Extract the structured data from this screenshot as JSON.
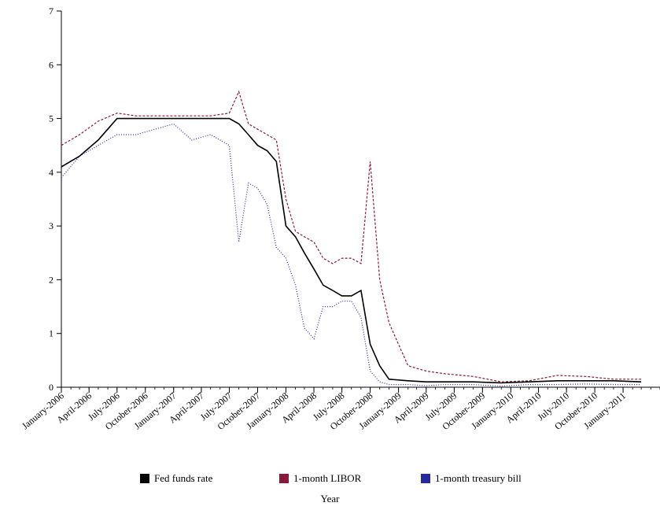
{
  "chart_data": {
    "type": "line",
    "title": "",
    "xlabel": "Year",
    "ylabel": "",
    "ylim": [
      0,
      7
    ],
    "yticks": [
      0,
      1,
      2,
      3,
      4,
      5,
      6,
      7
    ],
    "xticks": [
      "January-2006",
      "April-2006",
      "July-2006",
      "October-2006",
      "January-2007",
      "April-2007",
      "July-2007",
      "October-2007",
      "January-2008",
      "April-2008",
      "July-2008",
      "October-2008",
      "January-2009",
      "April-2009",
      "July-2009",
      "October-2009",
      "January-2010",
      "April-2010",
      "July-2010",
      "October-2010",
      "January-2011"
    ],
    "x": [
      "2006-01",
      "2006-03",
      "2006-05",
      "2006-07",
      "2006-09",
      "2006-11",
      "2007-01",
      "2007-03",
      "2007-05",
      "2007-07",
      "2007-08",
      "2007-09",
      "2007-10",
      "2007-11",
      "2007-12",
      "2008-01",
      "2008-02",
      "2008-03",
      "2008-04",
      "2008-05",
      "2008-06",
      "2008-07",
      "2008-08",
      "2008-09",
      "2008-10",
      "2008-11",
      "2008-12",
      "2009-02",
      "2009-04",
      "2009-06",
      "2009-09",
      "2009-12",
      "2010-03",
      "2010-06",
      "2010-09",
      "2010-12",
      "2011-03"
    ],
    "series": [
      {
        "name": "Fed funds rate",
        "color": "#000000",
        "values": [
          4.1,
          4.3,
          4.6,
          5.0,
          5.0,
          5.0,
          5.0,
          5.0,
          5.0,
          5.0,
          4.9,
          4.7,
          4.5,
          4.4,
          4.2,
          3.0,
          2.8,
          2.5,
          2.2,
          1.9,
          1.8,
          1.7,
          1.7,
          1.8,
          0.8,
          0.4,
          0.15,
          0.12,
          0.1,
          0.1,
          0.1,
          0.08,
          0.1,
          0.12,
          0.12,
          0.12,
          0.1
        ]
      },
      {
        "name": "1-month LIBOR",
        "color": "#8b1a3a",
        "values": [
          4.5,
          4.7,
          4.95,
          5.1,
          5.05,
          5.05,
          5.05,
          5.05,
          5.05,
          5.1,
          5.5,
          4.9,
          4.8,
          4.7,
          4.6,
          3.5,
          2.9,
          2.8,
          2.7,
          2.4,
          2.3,
          2.4,
          2.4,
          2.3,
          4.2,
          2.0,
          1.2,
          0.4,
          0.3,
          0.25,
          0.2,
          0.1,
          0.12,
          0.22,
          0.2,
          0.15,
          0.15
        ]
      },
      {
        "name": "1-month treasury bill",
        "color": "#2a2aa0",
        "values": [
          3.9,
          4.3,
          4.5,
          4.7,
          4.7,
          4.8,
          4.9,
          4.6,
          4.7,
          4.5,
          2.7,
          3.8,
          3.7,
          3.4,
          2.6,
          2.4,
          1.9,
          1.1,
          0.9,
          1.5,
          1.5,
          1.6,
          1.6,
          1.3,
          0.3,
          0.1,
          0.05,
          0.05,
          0.03,
          0.05,
          0.05,
          0.02,
          0.05,
          0.05,
          0.06,
          0.05,
          0.05
        ]
      }
    ],
    "legend_position": "bottom",
    "grid": false
  }
}
